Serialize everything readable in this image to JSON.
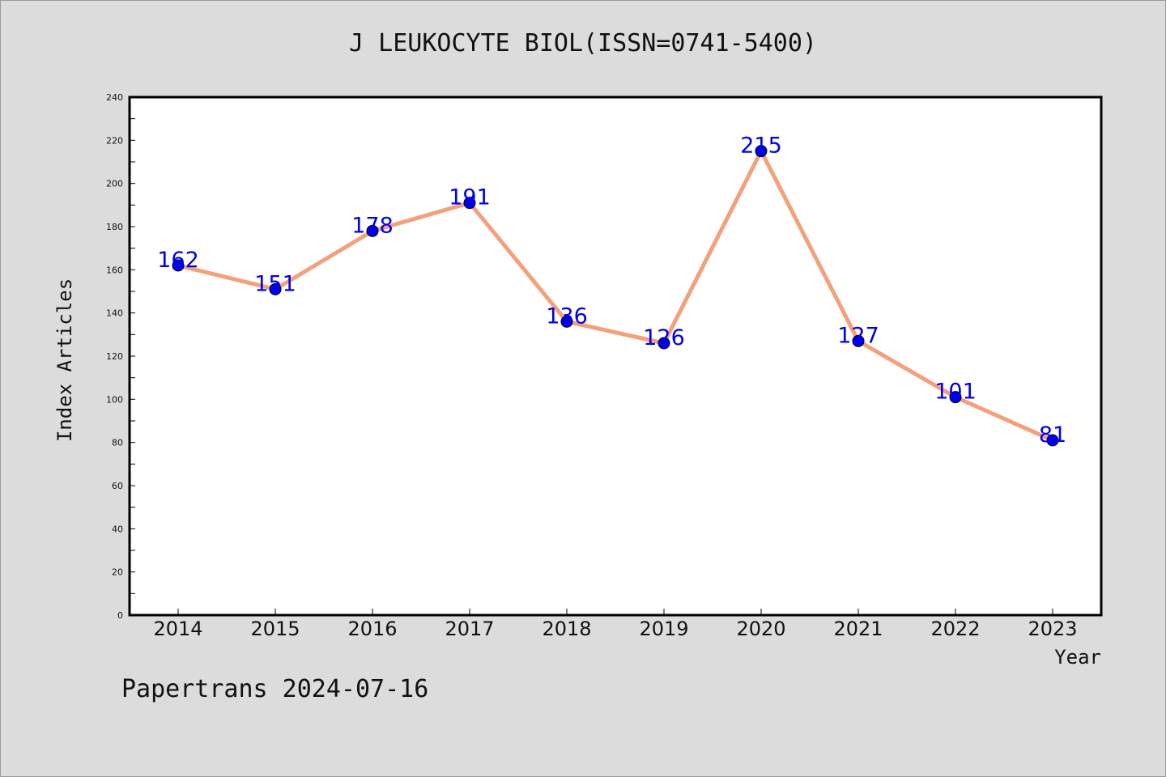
{
  "chart_data": {
    "type": "line",
    "title": "J LEUKOCYTE BIOL(ISSN=0741-5400)",
    "xlabel": "Year",
    "ylabel": "Index Articles",
    "categories": [
      "2014",
      "2015",
      "2016",
      "2017",
      "2018",
      "2019",
      "2020",
      "2021",
      "2022",
      "2023"
    ],
    "values": [
      162,
      151,
      178,
      191,
      136,
      126,
      215,
      127,
      101,
      81
    ],
    "data_labels": [
      "162",
      "151",
      "178",
      "191",
      "136",
      "126",
      "215",
      "127",
      "101",
      "81"
    ],
    "ylim": [
      0,
      240
    ],
    "yticks": [
      0,
      20,
      40,
      60,
      80,
      100,
      120,
      140,
      160,
      180,
      200,
      220,
      240
    ],
    "grid": false,
    "line_color": "#f4a07a",
    "marker_color": "#0000ee",
    "label_color": "#0000ee",
    "background": "#dcdcdc",
    "plot_background": "#ffffff"
  },
  "footer": {
    "text": "Papertrans 2024-07-16"
  }
}
